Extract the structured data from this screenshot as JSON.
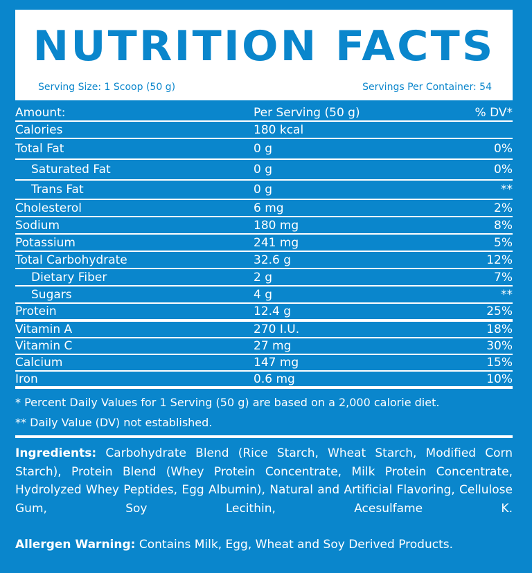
{
  "header": {
    "title": "NUTRITION FACTS",
    "serving_size": "Serving Size: 1 Scoop (50 g)",
    "servings_per_container": "Servings Per Container: 54"
  },
  "table": {
    "header": {
      "name": "Amount:",
      "amount": "Per Serving (50 g)",
      "dv": "% DV*"
    },
    "rows": [
      {
        "name": "Calories",
        "amount": "180 kcal",
        "dv": ""
      },
      {
        "name": "Total Fat",
        "amount": "0 g",
        "dv": "0%"
      },
      {
        "name": "Saturated Fat",
        "amount": "0 g",
        "dv": "0%"
      },
      {
        "name": "Trans Fat",
        "amount": "0 g",
        "dv": "**"
      },
      {
        "name": "Cholesterol",
        "amount": "6 mg",
        "dv": "2%"
      },
      {
        "name": "Sodium",
        "amount": "180 mg",
        "dv": "8%"
      },
      {
        "name": "Potassium",
        "amount": "241 mg",
        "dv": "5%"
      },
      {
        "name": "Total Carbohydrate",
        "amount": "32.6 g",
        "dv": "12%"
      },
      {
        "name": "Dietary Fiber",
        "amount": "2 g",
        "dv": "7%"
      },
      {
        "name": "Sugars",
        "amount": "4 g",
        "dv": "**"
      },
      {
        "name": "Protein",
        "amount": "12.4 g",
        "dv": "25%"
      },
      {
        "name": "Vitamin A",
        "amount": "270 I.U.",
        "dv": "18%"
      },
      {
        "name": "Vitamin C",
        "amount": "27 mg",
        "dv": "30%"
      },
      {
        "name": "Calcium",
        "amount": "147 mg",
        "dv": "15%"
      },
      {
        "name": "Iron",
        "amount": "0.6 mg",
        "dv": "10%"
      }
    ]
  },
  "footnotes": {
    "daily_values": "* Percent Daily Values for 1 Serving (50 g) are based on a 2,000 calorie diet.",
    "not_established": "** Daily Value (DV) not established."
  },
  "ingredients": {
    "label": "Ingredients:",
    "text": "Carbohydrate Blend (Rice Starch, Wheat Starch, Modified Corn Starch), Protein Blend (Whey Protein Concentrate, Milk Protein Concentrate, Hydrolyzed Whey Peptides, Egg Albumin), Natural and Artificial Flavoring, Cellulose Gum, Soy Lecithin, Acesulfame K."
  },
  "allergen": {
    "label": "Allergen Warning:",
    "text": "Contains Milk, Egg, Wheat and Soy Derived Products."
  },
  "colors": {
    "background": "#0a86cc",
    "panel": "#ffffff"
  }
}
